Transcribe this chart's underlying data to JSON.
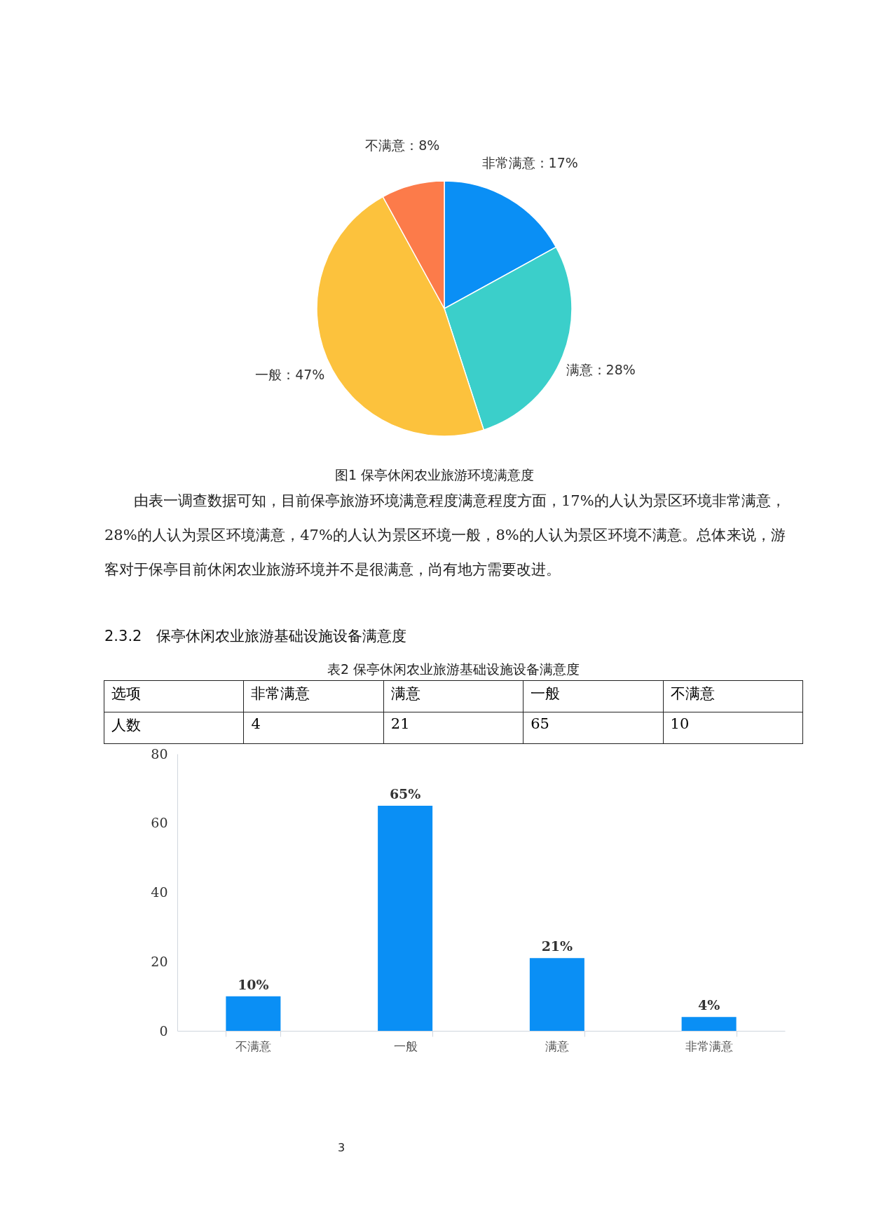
{
  "chart_data": [
    {
      "type": "pie",
      "title": "图1 保亭休闲农业旅游环境满意度",
      "categories": [
        "非常满意",
        "满意",
        "一般",
        "不满意"
      ],
      "values": [
        17,
        28,
        47,
        8
      ],
      "value_labels": [
        "17%",
        "28%",
        "47%",
        "8%"
      ],
      "colors": [
        "#0a8ff5",
        "#3bcfca",
        "#fcc23d",
        "#fc7b4a"
      ],
      "annotations": [
        "由表一调查数据可知，目前保亭旅游环境满意程度满意程度方面，17%的人认为景区环境非常满意，28%的人认为景区环境满意，47%的人认为景区环境一般，8%的人认为景区环境不满意。总体来说，游客对于保亭目前休闲农业旅游环境并不是很满意，尚有地方需要改进。",
        "2.3.2　保亭休闲农业旅游基础设施设备满意度"
      ]
    },
    {
      "type": "other",
      "title": "表2 保亭休闲农业旅游基础设施设备满意度",
      "annotations": [
        "选项",
        "非常满意",
        "满意",
        "一般",
        "不满意",
        "人数",
        "4",
        "21",
        "65",
        "10"
      ]
    },
    {
      "type": "bar",
      "categories": [
        "不满意",
        "一般",
        "满意",
        "非常满意"
      ],
      "values": [
        10,
        65,
        21,
        4
      ],
      "value_labels": [
        "10%",
        "65%",
        "21%",
        "4%"
      ],
      "color": "#0a8ff5",
      "ylim": [
        0,
        80
      ],
      "yticks": [
        0,
        20,
        40,
        60,
        80
      ],
      "grid": false,
      "annotations": [
        "3"
      ]
    }
  ]
}
